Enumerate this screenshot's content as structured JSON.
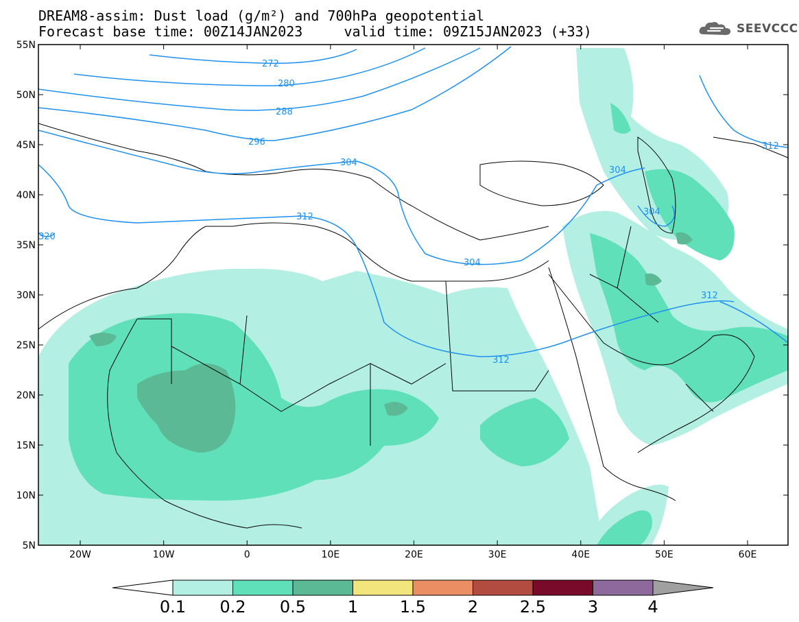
{
  "title": {
    "line1": "DREAM8-assim: Dust load (g/m²) and 700hPa geopotential",
    "line2": "Forecast base time: 00Z14JAN2023     valid time: 09Z15JAN2023 (+33)"
  },
  "logo": {
    "text": "SEEVCCC",
    "icon": "cloud-icon"
  },
  "axes": {
    "lat_labels": [
      "55N",
      "50N",
      "45N",
      "40N",
      "35N",
      "30N",
      "25N",
      "20N",
      "15N",
      "10N",
      "5N"
    ],
    "lon_labels": [
      "20W",
      "10W",
      "0",
      "10E",
      "20E",
      "30E",
      "40E",
      "50E",
      "60E"
    ]
  },
  "contour_labels": [
    "272",
    "280",
    "288",
    "296",
    "304",
    "312",
    "320",
    "304",
    "304",
    "304",
    "312",
    "312",
    "312"
  ],
  "colorbar": {
    "labels": [
      "0.1",
      "0.2",
      "0.5",
      "1",
      "1.5",
      "2",
      "2.5",
      "3",
      "4"
    ],
    "colors": [
      "#b4efe3",
      "#60e0b8",
      "#5cb996",
      "#f2e57c",
      "#ec8e64",
      "#b24c40",
      "#7a0a2a",
      "#8e6a9c"
    ],
    "over_color": "#a0a0a0"
  },
  "colors": {
    "dust_light": "#b4efe3",
    "dust_mid": "#60e0b8",
    "dust_dark": "#5cb996",
    "contour": "#1e90f0"
  }
}
